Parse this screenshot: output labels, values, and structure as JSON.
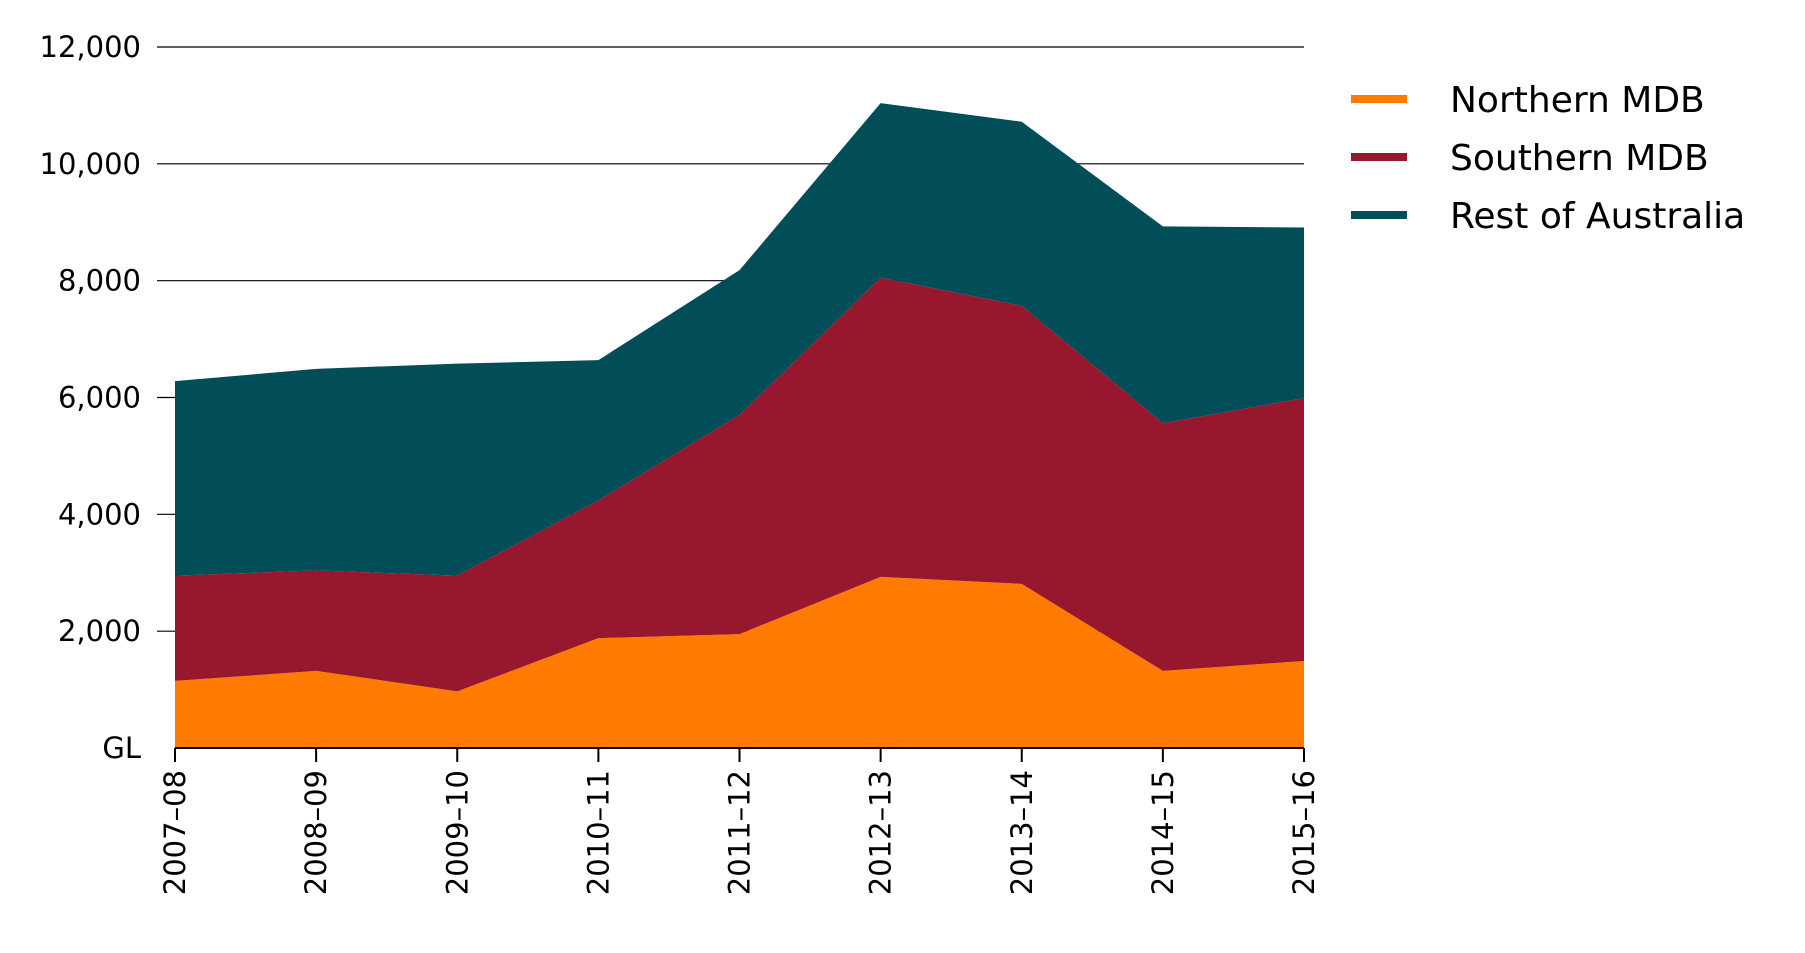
{
  "chart_data": {
    "type": "area",
    "stacked": true,
    "title": "",
    "xlabel": "",
    "ylabel": "GL",
    "categories": [
      "2007–08",
      "2008–09",
      "2009–10",
      "2010–11",
      "2011–12",
      "2012–13",
      "2013–14",
      "2014–15",
      "2015–16"
    ],
    "series": [
      {
        "name": "Northern MDB",
        "color": "#FF7A00",
        "values": [
          1150,
          1320,
          970,
          1880,
          1950,
          2930,
          2810,
          1320,
          1490
        ]
      },
      {
        "name": "Southern MDB",
        "color": "#96172E",
        "values": [
          1800,
          1720,
          1980,
          2360,
          3750,
          5120,
          4760,
          4240,
          4500
        ]
      },
      {
        "name": "Rest of Australia",
        "color": "#014D58",
        "values": [
          3330,
          3450,
          3630,
          2400,
          2480,
          2990,
          3150,
          3370,
          2920
        ]
      }
    ],
    "ylim": [
      0,
      12000
    ],
    "yticks": [
      0,
      2000,
      4000,
      6000,
      8000,
      10000,
      12000
    ],
    "ytick_labels": [
      "GL",
      "2,000",
      "4,000",
      "6,000",
      "8,000",
      "10,000",
      "12,000"
    ],
    "grid": true,
    "legend_position": "top-right"
  }
}
